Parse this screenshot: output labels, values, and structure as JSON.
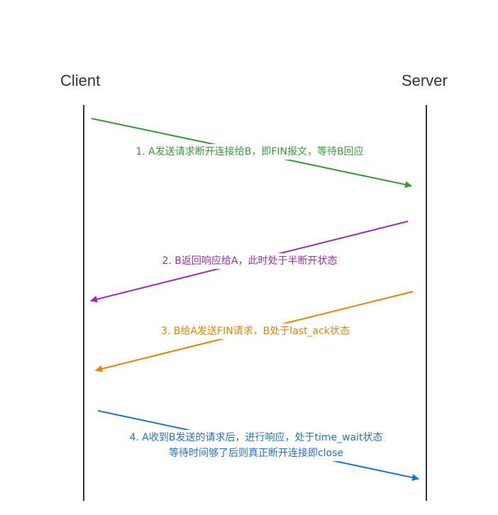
{
  "actors": {
    "client": "Client",
    "server": "Server"
  },
  "messages": [
    {
      "id": "m1",
      "lines": [
        "1. A发送请求断开连接给B，即FIN报文，等待B回应"
      ],
      "color": "#3a9a3a",
      "direction": "client-to-server"
    },
    {
      "id": "m2",
      "lines": [
        "2. B返回响应给A，此时处于半断开状态"
      ],
      "color": "#9b2fae",
      "direction": "server-to-client"
    },
    {
      "id": "m3",
      "lines": [
        "3. B给A发送FIN请求，B处于last_ack状态"
      ],
      "color": "#f08000",
      "direction": "server-to-client"
    },
    {
      "id": "m4",
      "lines": [
        "4. A收到B发送的请求后，进行响应，处于time_wait状态",
        "等待时间够了后则真正断开连接即close"
      ],
      "color": "#1e73d2",
      "direction": "client-to-server"
    }
  ]
}
